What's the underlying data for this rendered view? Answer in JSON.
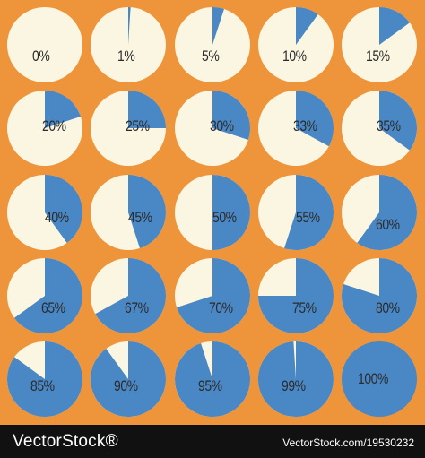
{
  "colors": {
    "background": "#ee953b",
    "pie_bg": "#fbf6e1",
    "pie_fill": "#4a87c5",
    "text": "#2b2b2b",
    "footer": "#111111"
  },
  "pies": [
    {
      "label": "0%",
      "value": 0
    },
    {
      "label": "1%",
      "value": 1
    },
    {
      "label": "5%",
      "value": 5
    },
    {
      "label": "10%",
      "value": 10
    },
    {
      "label": "15%",
      "value": 15
    },
    {
      "label": "20%",
      "value": 20
    },
    {
      "label": "25%",
      "value": 25
    },
    {
      "label": "30%",
      "value": 30
    },
    {
      "label": "33%",
      "value": 33
    },
    {
      "label": "35%",
      "value": 35
    },
    {
      "label": "40%",
      "value": 40
    },
    {
      "label": "45%",
      "value": 45
    },
    {
      "label": "50%",
      "value": 50
    },
    {
      "label": "55%",
      "value": 55
    },
    {
      "label": "60%",
      "value": 60
    },
    {
      "label": "65%",
      "value": 65
    },
    {
      "label": "67%",
      "value": 67
    },
    {
      "label": "70%",
      "value": 70
    },
    {
      "label": "75%",
      "value": 75
    },
    {
      "label": "80%",
      "value": 80
    },
    {
      "label": "85%",
      "value": 85
    },
    {
      "label": "90%",
      "value": 90
    },
    {
      "label": "95%",
      "value": 95
    },
    {
      "label": "99%",
      "value": 99
    },
    {
      "label": "100%",
      "value": 100
    }
  ],
  "footer": {
    "brand": "VectorStock®",
    "credit": "VectorStock.com/19530232"
  }
}
